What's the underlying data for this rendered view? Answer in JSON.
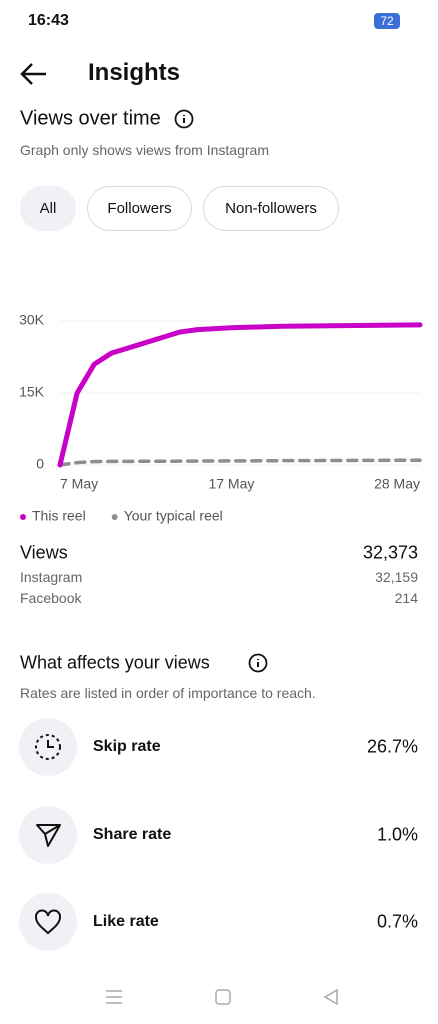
{
  "status_bar": {
    "time": "16:43",
    "battery": "72"
  },
  "header": {
    "title": "Insights"
  },
  "views_over_time": {
    "title": "Views over time",
    "subtitle": "Graph only shows views from Instagram",
    "filters": [
      "All",
      "Followers",
      "Non-followers"
    ]
  },
  "chart_data": {
    "type": "line",
    "x": [
      7,
      8,
      9,
      10,
      14,
      15,
      17,
      20,
      28
    ],
    "series": [
      {
        "name": "This reel",
        "color": "#c800c8",
        "values": [
          0,
          15000,
          21000,
          23300,
          27700,
          28200,
          28600,
          28900,
          29200
        ]
      },
      {
        "name": "Your typical reel",
        "color": "#8e8e8e",
        "values": [
          0,
          500,
          700,
          750,
          800,
          820,
          850,
          900,
          1000
        ]
      }
    ],
    "xlim": [
      7,
      28
    ],
    "xticks": [
      {
        "value": 7,
        "label": "7 May"
      },
      {
        "value": 17,
        "label": "17 May"
      },
      {
        "value": 28,
        "label": "28 May"
      }
    ],
    "ylim": [
      0,
      30000
    ],
    "yticks": [
      0,
      {
        "value": 15000,
        "label": "15K"
      },
      {
        "value": 30000,
        "label": "30K"
      }
    ],
    "grid": true
  },
  "views": {
    "label": "Views",
    "total": "32,373",
    "rows": [
      {
        "label": "Instagram",
        "value": "32,159"
      },
      {
        "label": "Facebook",
        "value": "214"
      }
    ]
  },
  "affects": {
    "title": "What affects your views",
    "subtitle": "Rates are listed in order of importance to reach.",
    "rows": [
      {
        "label": "Skip rate",
        "value": "26.7%"
      },
      {
        "label": "Share rate",
        "value": "1.0%"
      },
      {
        "label": "Like rate",
        "value": "0.7%"
      }
    ]
  }
}
